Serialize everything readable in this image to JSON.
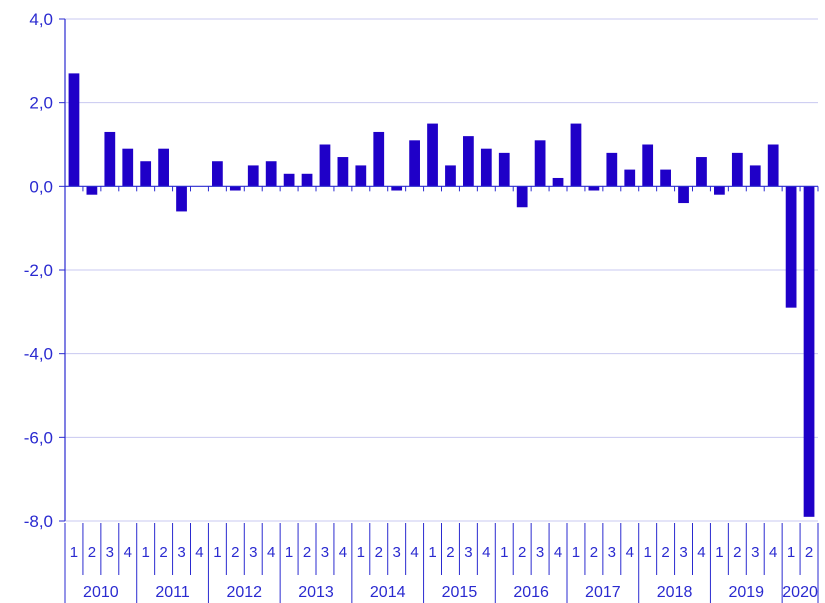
{
  "chart_data": {
    "type": "bar",
    "title": "",
    "xlabel": "",
    "ylabel": "",
    "ylim": [
      -8,
      4
    ],
    "y_ticks": [
      "4,0",
      "2,0",
      "0,0",
      "-2,0",
      "-4,0",
      "-6,0",
      "-8,0"
    ],
    "y_tick_values": [
      4,
      2,
      0,
      -2,
      -4,
      -6,
      -8
    ],
    "grid": true,
    "colors": {
      "bar": "#1f00c8",
      "axis": "#2a2ad0",
      "grid": "#c8c8f0"
    },
    "quarters": [
      "1",
      "2",
      "3",
      "4",
      "1",
      "2",
      "3",
      "4",
      "1",
      "2",
      "3",
      "4",
      "1",
      "2",
      "3",
      "4",
      "1",
      "2",
      "3",
      "4",
      "1",
      "2",
      "3",
      "4",
      "1",
      "2",
      "3",
      "4",
      "1",
      "2",
      "3",
      "4",
      "1",
      "2",
      "3",
      "4",
      "1",
      "2",
      "3",
      "4",
      "1",
      "2"
    ],
    "years": [
      {
        "label": "2010",
        "quarters": 4
      },
      {
        "label": "2011",
        "quarters": 4
      },
      {
        "label": "2012",
        "quarters": 4
      },
      {
        "label": "2013",
        "quarters": 4
      },
      {
        "label": "2014",
        "quarters": 4
      },
      {
        "label": "2015",
        "quarters": 4
      },
      {
        "label": "2016",
        "quarters": 4
      },
      {
        "label": "2017",
        "quarters": 4
      },
      {
        "label": "2018",
        "quarters": 4
      },
      {
        "label": "2019",
        "quarters": 4
      },
      {
        "label": "2020",
        "quarters": 2
      }
    ],
    "values": [
      2.7,
      -0.2,
      1.3,
      0.9,
      0.6,
      0.9,
      -0.6,
      0.0,
      0.6,
      -0.1,
      0.5,
      0.6,
      0.3,
      0.3,
      1.0,
      0.7,
      0.5,
      1.3,
      -0.1,
      1.1,
      1.5,
      0.5,
      1.2,
      0.9,
      0.8,
      -0.5,
      1.1,
      0.2,
      1.5,
      -0.1,
      0.8,
      0.4,
      1.0,
      0.4,
      -0.4,
      0.7,
      -0.2,
      0.8,
      0.5,
      1.0,
      -2.9,
      -7.9
    ]
  }
}
